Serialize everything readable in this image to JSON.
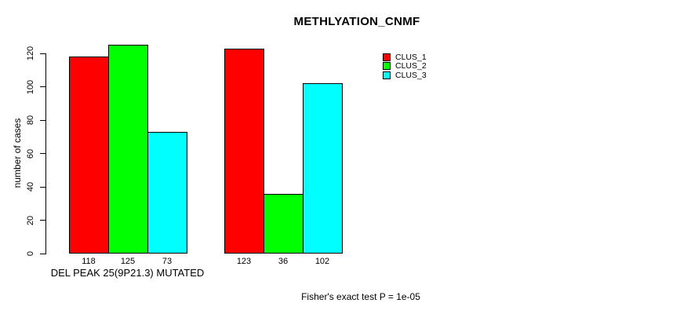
{
  "chart_data": {
    "type": "bar",
    "title": "METHLYATION_CNMF",
    "ylabel": "number of cases",
    "xlabel": "DEL PEAK 25(9P21.3) MUTATED",
    "footnote": "Fisher's exact test P = 1e-05",
    "ylim": [
      0,
      120
    ],
    "yticks": [
      0,
      20,
      40,
      60,
      80,
      100,
      120
    ],
    "grid": false,
    "legend_position": "top-right",
    "bar_value_labels_shown": true,
    "group_count": 2,
    "series": [
      {
        "name": "CLUS_1",
        "color": "#ff0000",
        "values": [
          118,
          123
        ]
      },
      {
        "name": "CLUS_2",
        "color": "#00ff00",
        "values": [
          125,
          36
        ]
      },
      {
        "name": "CLUS_3",
        "color": "#00ffff",
        "values": [
          73,
          102
        ]
      }
    ]
  }
}
